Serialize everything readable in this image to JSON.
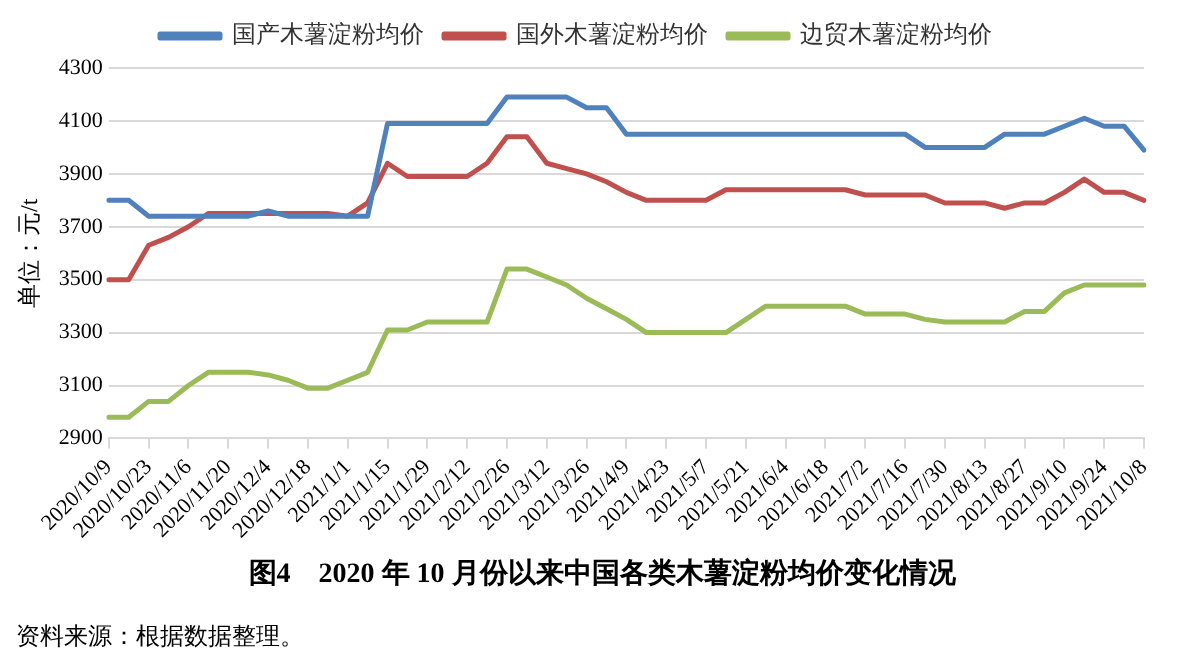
{
  "chart_data": {
    "type": "line",
    "title": "图4　2020 年 10 月份以来中国各类木薯淀粉均价变化情况",
    "ylabel": "单位：元/t",
    "categories": [
      "2020/10/9",
      null,
      "2020/10/23",
      null,
      "2020/11/6",
      null,
      "2020/11/20",
      null,
      "2020/12/4",
      null,
      "2020/12/18",
      null,
      "2021/1/1",
      null,
      "2021/1/15",
      null,
      "2021/1/29",
      null,
      "2021/2/12",
      null,
      "2021/2/26",
      null,
      "2021/3/12",
      null,
      "2021/3/26",
      null,
      "2021/4/9",
      null,
      "2021/4/23",
      null,
      "2021/5/7",
      null,
      "2021/5/21",
      null,
      "2021/6/4",
      null,
      "2021/6/18",
      null,
      "2021/7/2",
      null,
      "2021/7/16",
      null,
      "2021/7/30",
      null,
      "2021/8/13",
      null,
      "2021/8/27",
      null,
      "2021/9/10",
      null,
      "2021/9/24",
      null,
      "2021/10/8"
    ],
    "series": [
      {
        "name": "国产木薯淀粉均价",
        "color": "#4f81bd",
        "values": [
          3800,
          3800,
          3740,
          3740,
          3740,
          3740,
          3740,
          3740,
          3760,
          3740,
          3740,
          3740,
          3740,
          3740,
          4090,
          4090,
          4090,
          4090,
          4090,
          4090,
          4190,
          4190,
          4190,
          4190,
          4150,
          4150,
          4050,
          4050,
          4050,
          4050,
          4050,
          4050,
          4050,
          4050,
          4050,
          4050,
          4050,
          4050,
          4050,
          4050,
          4050,
          4000,
          4000,
          4000,
          4000,
          4050,
          4050,
          4050,
          4080,
          4110,
          4080,
          4080,
          3990
        ]
      },
      {
        "name": "国外木薯淀粉均价",
        "color": "#c0504d",
        "values": [
          3500,
          3500,
          3630,
          3660,
          3700,
          3750,
          3750,
          3750,
          3750,
          3750,
          3750,
          3750,
          3740,
          3790,
          3940,
          3890,
          3890,
          3890,
          3890,
          3940,
          4040,
          4040,
          3940,
          3920,
          3900,
          3870,
          3830,
          3800,
          3800,
          3800,
          3800,
          3840,
          3840,
          3840,
          3840,
          3840,
          3840,
          3840,
          3820,
          3820,
          3820,
          3820,
          3790,
          3790,
          3790,
          3770,
          3790,
          3790,
          3830,
          3880,
          3830,
          3830,
          3800
        ]
      },
      {
        "name": "边贸木薯淀粉均价",
        "color": "#9bbb59",
        "values": [
          2980,
          2980,
          3040,
          3040,
          3100,
          3150,
          3150,
          3150,
          3140,
          3120,
          3090,
          3090,
          3120,
          3150,
          3310,
          3310,
          3340,
          3340,
          3340,
          3340,
          3540,
          3540,
          3510,
          3480,
          3430,
          3390,
          3350,
          3300,
          3300,
          3300,
          3300,
          3300,
          3350,
          3400,
          3400,
          3400,
          3400,
          3400,
          3370,
          3370,
          3370,
          3350,
          3340,
          3340,
          3340,
          3340,
          3380,
          3380,
          3450,
          3480,
          3480,
          3480,
          3480
        ]
      }
    ],
    "ylim": [
      2900,
      4300
    ],
    "yticks": [
      2900,
      3100,
      3300,
      3500,
      3700,
      3900,
      4100,
      4300
    ],
    "grid": "y",
    "legend": "top",
    "marker": "none",
    "line_style": "solid",
    "annotations": [
      "资料来源：根据数据整理。"
    ]
  }
}
